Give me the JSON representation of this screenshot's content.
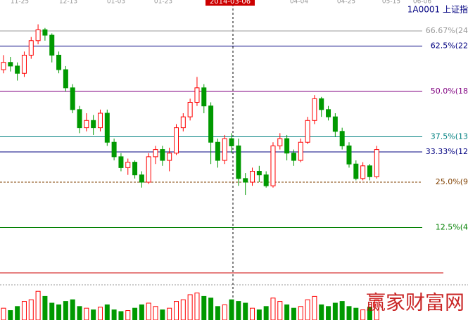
{
  "chart_data": {
    "type": "candlestick",
    "title": "1A0001 上证指",
    "top_dates": [
      "11-25",
      "12-13",
      "01-03",
      "01-23",
      "04-04",
      "04-25",
      "05-15",
      "06-06"
    ],
    "cursor_label": "2014-03-06",
    "watermark": "赢家财富网",
    "ylim": [
      0,
      75.2
    ],
    "up_color": "#ff0000",
    "down_color": "#009900",
    "levels": [
      {
        "value": 66.67,
        "label": "66.67%(24",
        "color": "#999999"
      },
      {
        "value": 62.5,
        "label": "62.5%(22",
        "color": "#000080"
      },
      {
        "value": 50,
        "label": "50.0%(18",
        "color": "#800080"
      },
      {
        "value": 37.5,
        "label": "37.5%(13",
        "color": "#008080"
      },
      {
        "value": 33.33,
        "label": "33.33%(12",
        "color": "#000080"
      },
      {
        "value": 25,
        "label": "25.0%(9",
        "color": "#804000",
        "dashed": true
      },
      {
        "value": 12.5,
        "label": "12.5%(4",
        "color": "#008000"
      },
      {
        "value": 0,
        "color": "#cc0000"
      }
    ],
    "open": [
      56,
      58,
      57,
      55,
      60,
      64,
      67,
      65.5,
      60,
      56,
      51,
      45,
      40,
      42,
      40,
      44,
      36,
      32,
      29,
      30.5,
      27,
      25,
      32,
      34,
      31,
      33,
      40,
      43,
      47,
      51,
      46,
      36,
      31,
      37,
      35,
      26,
      25,
      28,
      27,
      24,
      35,
      37,
      33,
      31,
      36,
      42,
      48,
      45,
      43,
      39,
      35,
      30,
      26,
      29.5,
      26.5
    ],
    "high": [
      60,
      59.5,
      58,
      61,
      65,
      68.5,
      67.5,
      66,
      61,
      57,
      52,
      46,
      44,
      43.5,
      45,
      45,
      37,
      33,
      31.5,
      31,
      28,
      33,
      35,
      35,
      34.5,
      41,
      44,
      48,
      54,
      52,
      47,
      37,
      38,
      38.5,
      37,
      27.5,
      29,
      29.5,
      28,
      36,
      38.5,
      38,
      34,
      37,
      43,
      49,
      48.5,
      46,
      44,
      40,
      36,
      31,
      30.5,
      30,
      35
    ],
    "low": [
      55,
      55.5,
      53,
      54,
      59,
      63,
      64,
      58,
      55,
      50,
      44,
      38.5,
      39,
      38,
      39,
      35,
      31,
      28,
      27,
      26,
      23.5,
      24.5,
      30,
      29.5,
      28,
      32.5,
      39,
      42,
      46,
      44,
      30,
      29,
      30,
      33,
      24,
      21.5,
      24,
      25,
      23.5,
      23.5,
      34,
      31,
      29.5,
      30.5,
      35.5,
      41,
      43,
      42,
      37.5,
      34,
      29,
      25.5,
      25.5,
      25.5,
      26
    ],
    "close": [
      58,
      57,
      55,
      60,
      64,
      67,
      65.5,
      60,
      56,
      51,
      45,
      40,
      42,
      40,
      44,
      36,
      32,
      29,
      30.5,
      27,
      25,
      32,
      34,
      31,
      33,
      40,
      43,
      47,
      51,
      46,
      36,
      31,
      37,
      35,
      26,
      25,
      28,
      27,
      24,
      35,
      37,
      33,
      31,
      36,
      42,
      48,
      45,
      43,
      39,
      35,
      30,
      26,
      29.5,
      26.5,
      34
    ],
    "vlim": [
      0,
      100
    ],
    "volume": [
      35,
      28,
      40,
      55,
      60,
      85,
      70,
      50,
      45,
      55,
      60,
      40,
      35,
      30,
      38,
      45,
      30,
      25,
      28,
      35,
      45,
      50,
      40,
      30,
      35,
      55,
      60,
      75,
      80,
      70,
      65,
      40,
      45,
      60,
      55,
      50,
      35,
      30,
      40,
      65,
      55,
      45,
      35,
      40,
      60,
      70,
      45,
      40,
      50,
      55,
      40,
      35,
      30,
      38,
      60
    ]
  }
}
